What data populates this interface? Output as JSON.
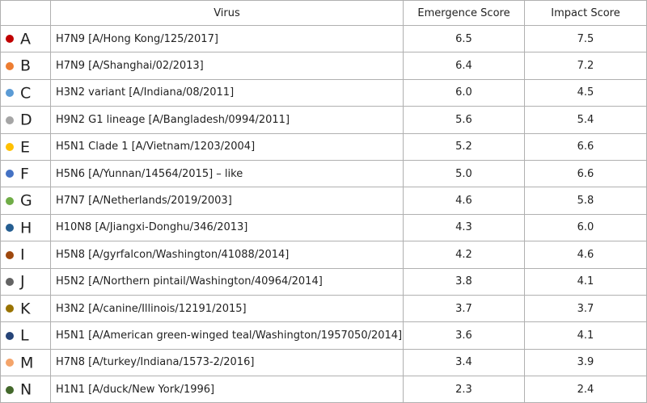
{
  "header": {
    "virus": "Virus",
    "emergence": "Emergence Score",
    "impact": "Impact Score"
  },
  "rows": [
    {
      "letter": "A",
      "color": "#c00000",
      "virus": "H7N9 [A/Hong Kong/125/2017]",
      "emergence": "6.5",
      "impact": "7.5"
    },
    {
      "letter": "B",
      "color": "#ed7d31",
      "virus": "H7N9 [A/Shanghai/02/2013]",
      "emergence": "6.4",
      "impact": "7.2"
    },
    {
      "letter": "C",
      "color": "#5b9bd5",
      "virus": "H3N2 variant [A/Indiana/08/2011]",
      "emergence": "6.0",
      "impact": "4.5"
    },
    {
      "letter": "D",
      "color": "#a5a5a5",
      "virus": "H9N2 G1 lineage [A/Bangladesh/0994/2011]",
      "emergence": "5.6",
      "impact": "5.4"
    },
    {
      "letter": "E",
      "color": "#ffc000",
      "virus": "H5N1 Clade 1 [A/Vietnam/1203/2004]",
      "emergence": "5.2",
      "impact": "6.6"
    },
    {
      "letter": "F",
      "color": "#4472c4",
      "virus": "H5N6 [A/Yunnan/14564/2015] – like",
      "emergence": "5.0",
      "impact": "6.6"
    },
    {
      "letter": "G",
      "color": "#70ad47",
      "virus": "H7N7 [A/Netherlands/2019/2003]",
      "emergence": "4.6",
      "impact": "5.8"
    },
    {
      "letter": "H",
      "color": "#255e91",
      "virus": "H10N8 [A/Jiangxi-Donghu/346/2013]",
      "emergence": "4.3",
      "impact": "6.0"
    },
    {
      "letter": "I",
      "color": "#9e480e",
      "virus": "H5N8 [A/gyrfalcon/Washington/41088/2014]",
      "emergence": "4.2",
      "impact": "4.6"
    },
    {
      "letter": "J",
      "color": "#636363",
      "virus": "H5N2 [A/Northern pintail/Washington/40964/2014]",
      "emergence": "3.8",
      "impact": "4.1"
    },
    {
      "letter": "K",
      "color": "#997300",
      "virus": "H3N2 [A/canine/Illinois/12191/2015]",
      "emergence": "3.7",
      "impact": "3.7"
    },
    {
      "letter": "L",
      "color": "#264478",
      "virus": "H5N1 [A/American green-winged teal/Washington/1957050/2014]",
      "emergence": "3.6",
      "impact": "4.1"
    },
    {
      "letter": "M",
      "color": "#f4a46a",
      "virus": "H7N8 [A/turkey/Indiana/1573-2/2016]",
      "emergence": "3.4",
      "impact": "3.9"
    },
    {
      "letter": "N",
      "color": "#43682b",
      "virus": "H1N1 [A/duck/New York/1996]",
      "emergence": "2.3",
      "impact": "2.4"
    }
  ]
}
